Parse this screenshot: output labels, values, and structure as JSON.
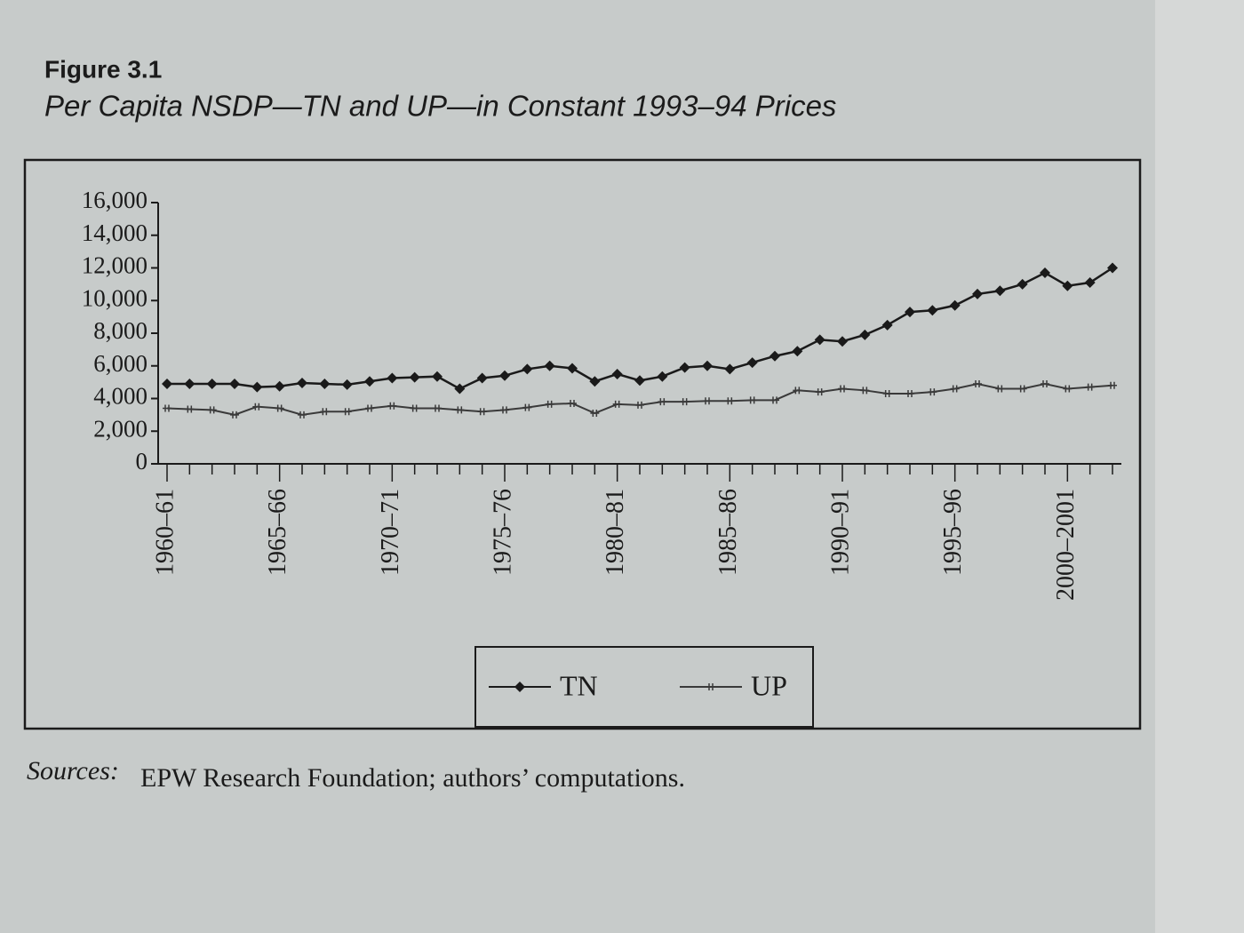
{
  "chart_data": {
    "type": "line",
    "title": "Figure 3.1",
    "subtitle": "Per Capita NSDP—TN and UP—in Constant 1993–94 Prices",
    "source_label": "Sources:",
    "source": "EPW Research Foundation; authors’ computations.",
    "categories": [
      "1960–61",
      null,
      null,
      null,
      null,
      "1965–66",
      null,
      null,
      null,
      null,
      "1970–71",
      null,
      null,
      null,
      null,
      "1975–76",
      null,
      null,
      null,
      null,
      "1980–81",
      null,
      null,
      null,
      null,
      "1985–86",
      null,
      null,
      null,
      null,
      "1990–91",
      null,
      null,
      null,
      null,
      "1995–96",
      null,
      null,
      null,
      null,
      "2000–2001",
      null,
      null
    ],
    "series": [
      {
        "name": "TN",
        "color": "#1a1a1a",
        "marker": "diamond",
        "values": [
          4900,
          4900,
          4900,
          4900,
          4700,
          4750,
          4950,
          4900,
          4850,
          5050,
          5250,
          5300,
          5350,
          4600,
          5250,
          5400,
          5800,
          6000,
          5850,
          5050,
          5500,
          5100,
          5350,
          5900,
          6000,
          5800,
          6200,
          6600,
          6900,
          7600,
          7500,
          7900,
          8500,
          9300,
          9400,
          9700,
          10400,
          10600,
          11000,
          11700,
          10900,
          11100,
          12000
        ]
      },
      {
        "name": "UP",
        "color": "#3a3a3a",
        "marker": "cross",
        "values": [
          3400,
          3350,
          3300,
          3000,
          3500,
          3400,
          3000,
          3200,
          3200,
          3400,
          3550,
          3400,
          3400,
          3300,
          3200,
          3300,
          3450,
          3650,
          3700,
          3100,
          3650,
          3600,
          3800,
          3800,
          3850,
          3850,
          3900,
          3900,
          4500,
          4400,
          4600,
          4500,
          4300,
          4300,
          4400,
          4600,
          4900,
          4600,
          4600,
          4900,
          4600,
          4700,
          4800
        ]
      }
    ],
    "ylim": [
      0,
      16000
    ],
    "yticks": [
      0,
      {
        "value": 2000,
        "label": "2,000"
      },
      {
        "value": 4000,
        "label": "4,000"
      },
      {
        "value": 6000,
        "label": "6,000"
      },
      {
        "value": 8000,
        "label": "8,000"
      },
      {
        "value": 10000,
        "label": "10,000"
      },
      {
        "value": 12000,
        "label": "12,000"
      },
      {
        "value": 14000,
        "label": "14,000"
      },
      {
        "value": 16000,
        "label": "16,000"
      }
    ],
    "grid": false,
    "legend": "bottom"
  }
}
